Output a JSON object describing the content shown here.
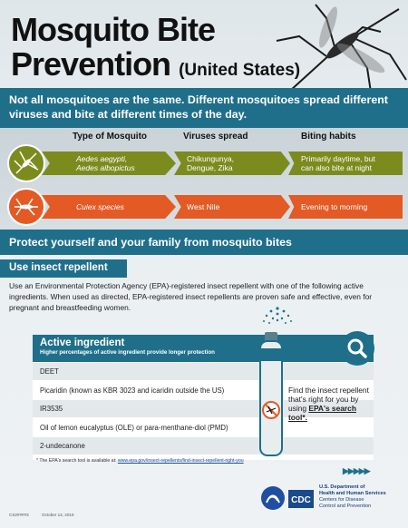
{
  "title": {
    "line1": "Mosquito Bite",
    "line2": "Prevention",
    "sub": "(United States)"
  },
  "intro": "Not all mosquitoes are the same. Different mosquitoes spread different viruses and bite at different times of the day.",
  "types_table": {
    "headers": [
      "Type of Mosquito",
      "Viruses spread",
      "Biting habits"
    ],
    "rows": [
      {
        "type": "Aedes aegypti,\nAedes albopictus",
        "viruses": "Chikungunya,\nDengue, Zika",
        "habits": "Primarily daytime, but\ncan also bite at night",
        "color": "#7c8b1e"
      },
      {
        "type": "Culex species",
        "viruses": "West Nile",
        "habits": "Evening to morning",
        "color": "#e35a25"
      }
    ]
  },
  "protect": "Protect yourself and your family from mosquito bites",
  "repellent": {
    "heading": "Use insect repellent",
    "text": "Use an Environmental Protection Agency (EPA)-registered insect repellent with one of the following active ingredients. When used as directed, EPA-registered insect repellents are proven safe and effective, even for pregnant and breastfeeding women."
  },
  "ingredients": {
    "heading": "Active ingredient",
    "subheading": "Higher percentages of active ingredient provide longer protection",
    "items": [
      "DEET",
      "Picaridin (known as KBR 3023 and icaridin outside the US)",
      "IR3535",
      "Oil of lemon eucalyptus (OLE) or para-menthane-diol (PMD)",
      "2-undecanone"
    ]
  },
  "find": {
    "text": "Find the insect repellent that's right for you by using ",
    "link": "EPA's search tool*."
  },
  "footnote": {
    "text": "* The EPA's search tool is available at: ",
    "url": "www.epa.gov/insect-repellents/find-insect-repellent-right-you"
  },
  "meta": {
    "code": "CS2####3",
    "date": "October 13, 2016"
  },
  "agency": {
    "line1": "U.S. Department of",
    "line2": "Health and Human Services",
    "line3": "Centers for Disease",
    "line4": "Control and Prevention"
  },
  "cdc_logo_text": "CDC",
  "colors": {
    "teal": "#1f6f8b",
    "olive": "#7c8b1e",
    "orange": "#e35a25"
  }
}
